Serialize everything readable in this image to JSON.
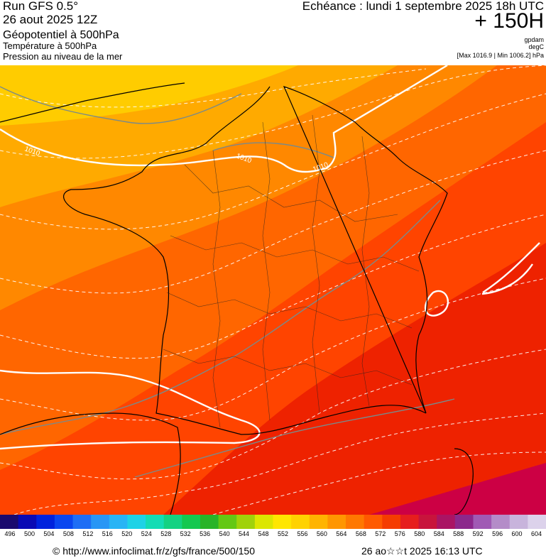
{
  "header": {
    "run": "Run GFS 0.5°",
    "date": "26 aout 2025 12Z",
    "layer_1": "Géopotentiel à 500hPa",
    "layer_2": "Température à 500hPa",
    "layer_3": "Pression au niveau de la mer",
    "echeance": "Echéance : lundi 1 septembre 2025 18h UTC",
    "hour": "+ 150H",
    "unit_1": "gpdam",
    "unit_2": "degC",
    "unit_3": "[Max 1016.9 | Min 1006.2] hPa"
  },
  "map": {
    "isobar_labels": [
      "1010",
      "1010",
      "1010"
    ],
    "colors": {
      "yellow": "#ffcc00",
      "light_orange": "#ffaa00",
      "orange": "#ff8800",
      "dark_orange": "#ff6600",
      "red_orange": "#ff4400",
      "red": "#ee2200",
      "dark_red": "#cc0044"
    }
  },
  "scale": {
    "labels": [
      "496",
      "500",
      "504",
      "508",
      "512",
      "516",
      "520",
      "524",
      "528",
      "532",
      "536",
      "540",
      "544",
      "548",
      "552",
      "556",
      "560",
      "564",
      "568",
      "572",
      "576",
      "580",
      "584",
      "588",
      "592",
      "596",
      "600",
      "604"
    ],
    "colors": [
      "#1a0a6e",
      "#0a0ab4",
      "#0022dd",
      "#0a46f0",
      "#1e6ef5",
      "#2896f5",
      "#28b4f5",
      "#1ed2e6",
      "#14dcb4",
      "#14d282",
      "#14c850",
      "#28b428",
      "#64c814",
      "#a0d20a",
      "#dce600",
      "#ffe600",
      "#ffd200",
      "#ffb400",
      "#ff9600",
      "#ff7800",
      "#ff5a00",
      "#f53c00",
      "#e61e1e",
      "#c8143c",
      "#aa1464",
      "#8c288c",
      "#a05ab4",
      "#b48cc8",
      "#c8b4dc",
      "#dcd2eb"
    ]
  },
  "footer": {
    "url": "© http://www.infoclimat.fr/z/gfs/france/500/150",
    "generated": "26 ao☆☆t 2025 16:13 UTC"
  }
}
